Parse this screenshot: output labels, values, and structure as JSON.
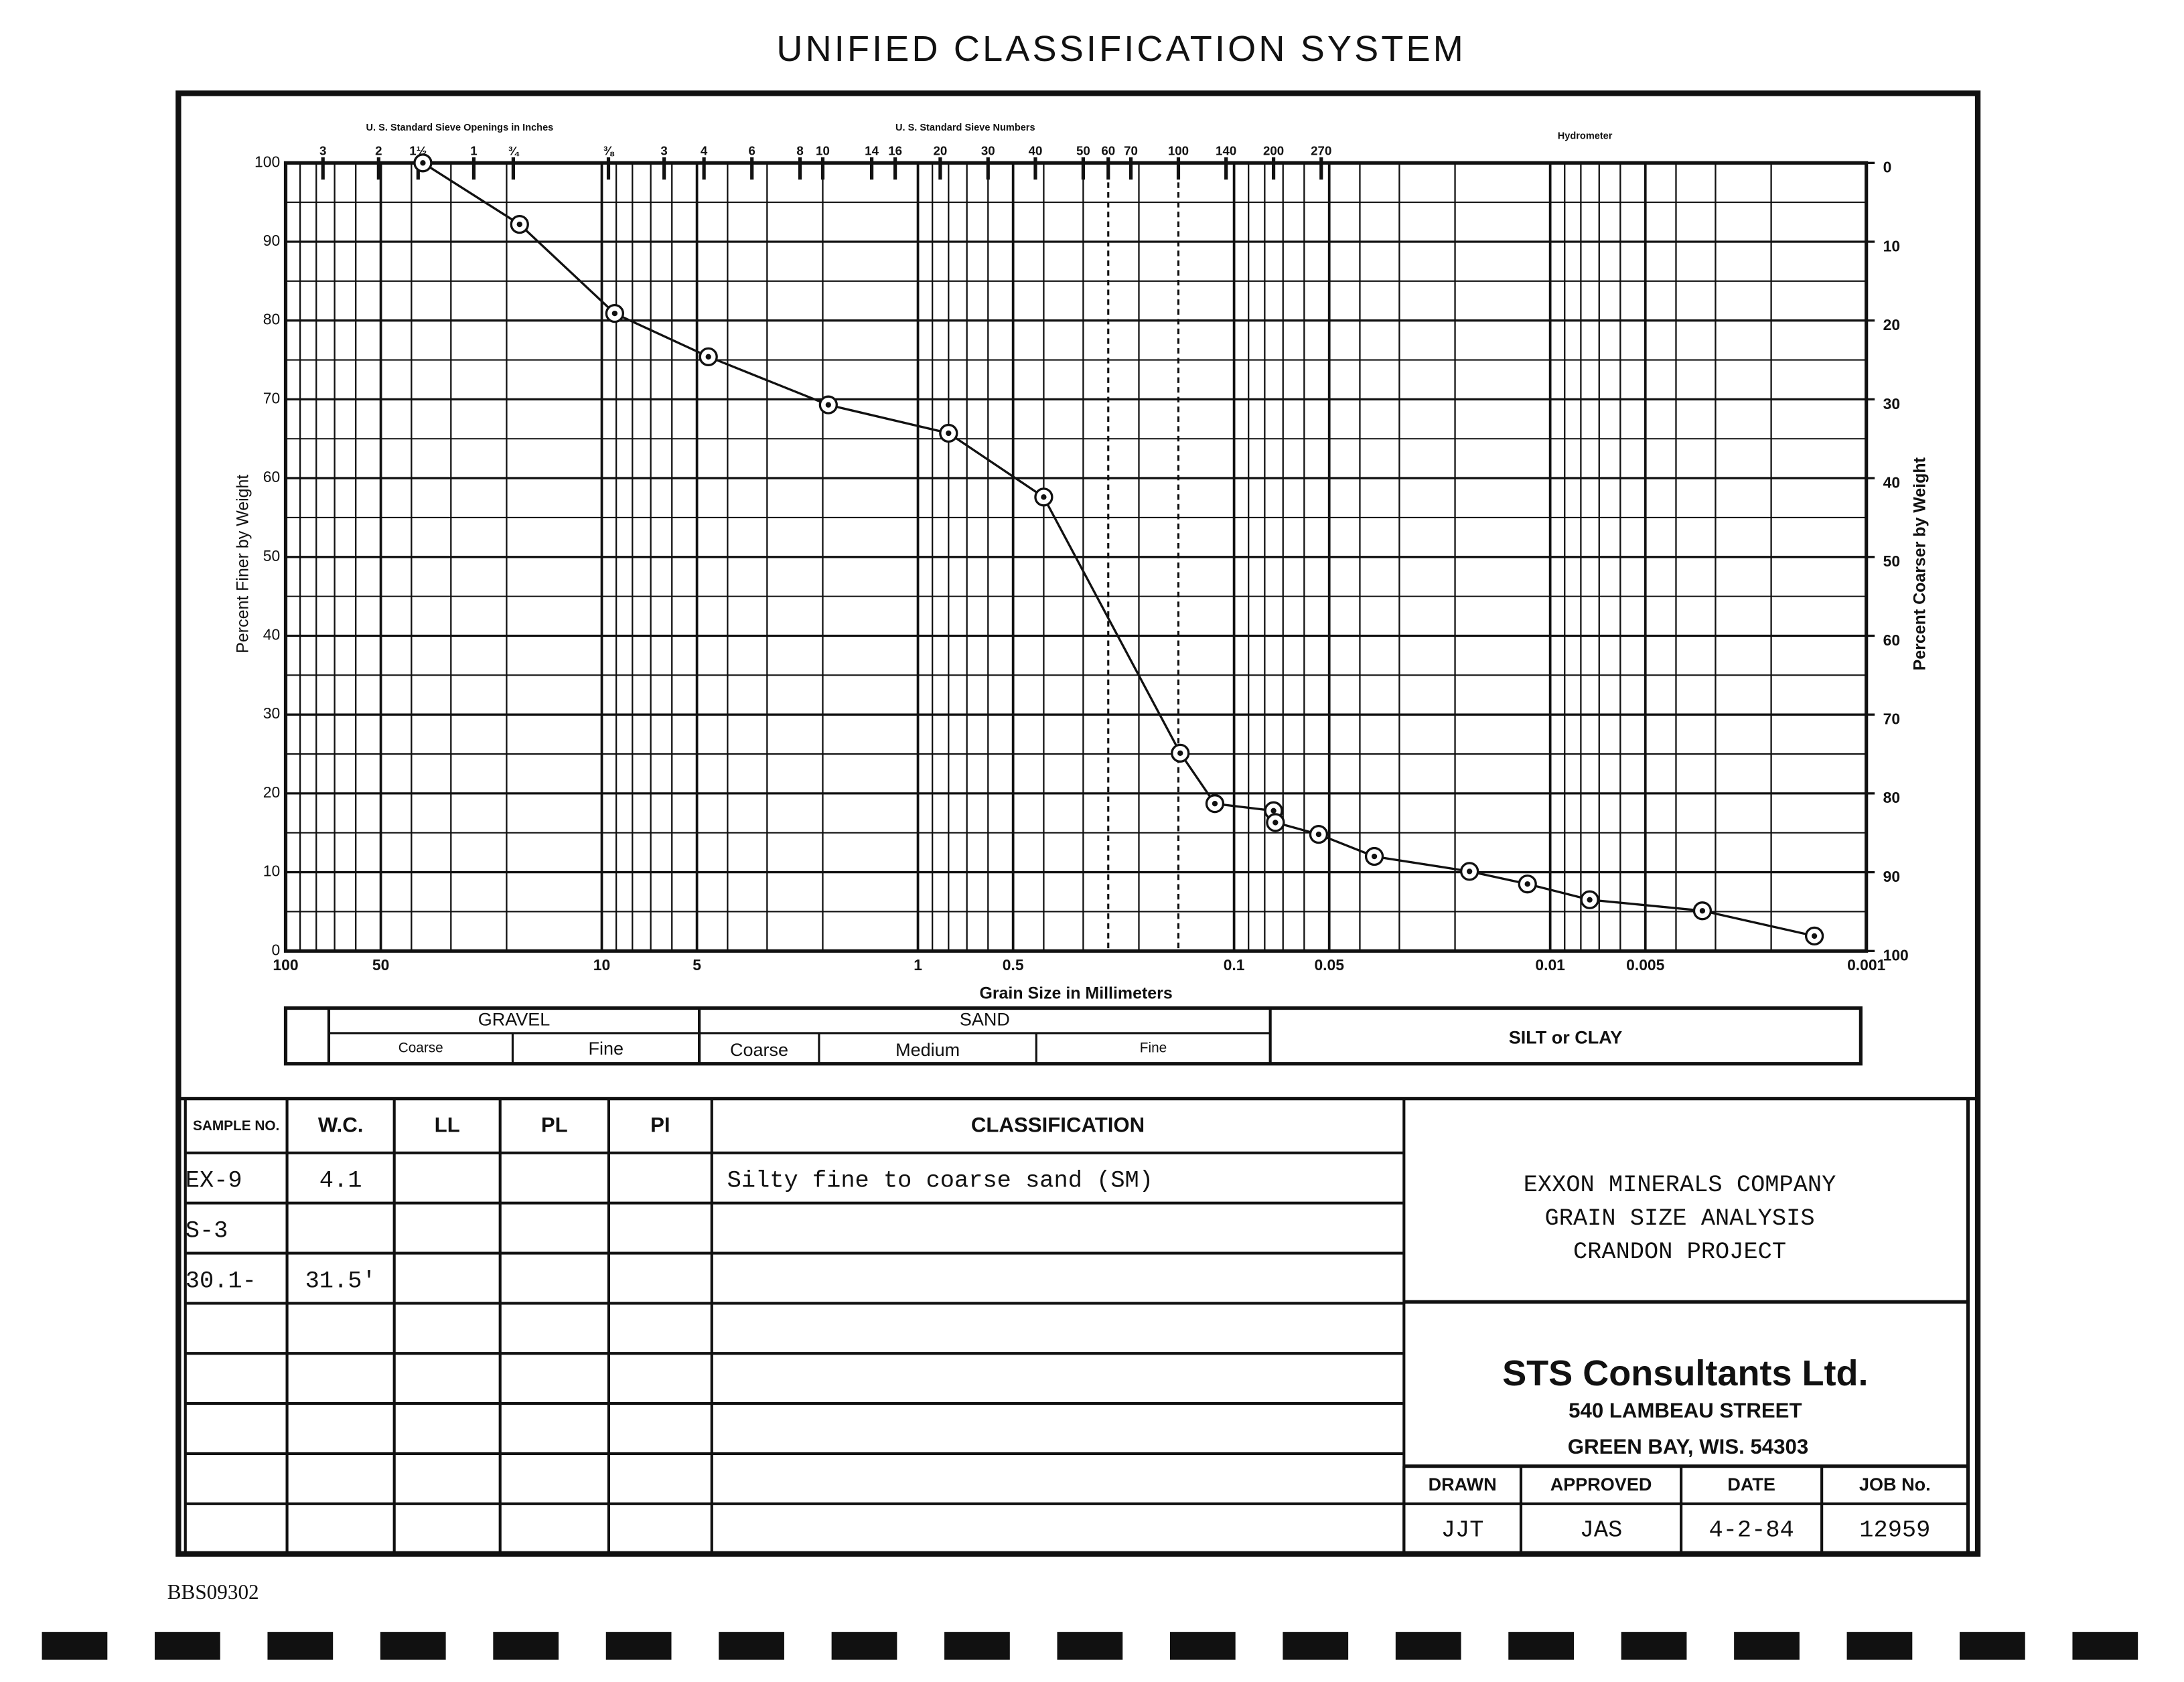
{
  "title": "UNIFIED CLASSIFICATION SYSTEM",
  "chart_data": {
    "type": "line",
    "x_label": "Grain Size in Millimeters",
    "y_label": "Percent Finer by Weight",
    "y2_label": "Percent Coarser by Weight",
    "x2_labels": [
      "U. S. Standard Sieve Openings in Inches",
      "U. S. Standard Sieve Numbers",
      "Hydrometer"
    ],
    "x_scale": "log",
    "xlim": [
      100,
      0.001
    ],
    "xticks": [
      100,
      50,
      10,
      5,
      1,
      0.5,
      0.1,
      0.05,
      0.01,
      0.005,
      0.001
    ],
    "x2ticks": [
      {
        "value": 76.2,
        "label": "3"
      },
      {
        "value": 50.8,
        "label": "2"
      },
      {
        "value": 38.1,
        "label": "1½"
      },
      {
        "value": 25.4,
        "label": "1"
      },
      {
        "value": 19.05,
        "label": "¾"
      },
      {
        "value": 9.525,
        "label": "⅜"
      },
      {
        "value": 6.35,
        "label": "3"
      },
      {
        "value": 4.75,
        "label": "4"
      },
      {
        "value": 3.35,
        "label": "6"
      },
      {
        "value": 2.36,
        "label": "8"
      },
      {
        "value": 2.0,
        "label": "10"
      },
      {
        "value": 1.4,
        "label": "14"
      },
      {
        "value": 1.18,
        "label": "16"
      },
      {
        "value": 0.85,
        "label": "20"
      },
      {
        "value": 0.6,
        "label": "30"
      },
      {
        "value": 0.425,
        "label": "40"
      },
      {
        "value": 0.3,
        "label": "50"
      },
      {
        "value": 0.25,
        "label": "60"
      },
      {
        "value": 0.212,
        "label": "70"
      },
      {
        "value": 0.15,
        "label": "100"
      },
      {
        "value": 0.106,
        "label": "140"
      },
      {
        "value": 0.075,
        "label": "200"
      },
      {
        "value": 0.053,
        "label": "270"
      }
    ],
    "ylim": [
      0,
      100
    ],
    "yticks": [
      0,
      10,
      20,
      30,
      40,
      50,
      60,
      70,
      80,
      90,
      100
    ],
    "y2lim": [
      100,
      0
    ],
    "y2ticks": [
      0,
      10,
      20,
      30,
      40,
      50,
      60,
      70,
      80,
      90,
      100
    ],
    "grid": true,
    "series": [
      {
        "name": "EX-9",
        "color": "#111111",
        "x": [
          36.8,
          18.2,
          9.1,
          4.6,
          1.92,
          0.8,
          0.4,
          0.148,
          0.115,
          0.075,
          0.074,
          0.054,
          0.036,
          0.018,
          0.0118,
          0.0075,
          0.0033,
          0.00146
        ],
        "values": [
          100,
          92.2,
          80.9,
          75.4,
          69.3,
          65.7,
          57.6,
          25.1,
          18.7,
          17.8,
          16.3,
          14.8,
          12.0,
          10.1,
          8.5,
          6.5,
          5.1,
          1.9
        ]
      }
    ]
  },
  "soil_classes": {
    "gravel": {
      "label": "GRAVEL",
      "coarse": "Coarse",
      "fine": "Fine"
    },
    "sand": {
      "label": "SAND",
      "coarse": "Coarse",
      "medium": "Medium",
      "fine": "Fine"
    },
    "silt_clay": "SILT or CLAY"
  },
  "table": {
    "headers": {
      "sample_no": "SAMPLE NO.",
      "wc": "W.C.",
      "ll": "LL",
      "pl": "PL",
      "pi": "PI",
      "classification": "CLASSIFICATION"
    },
    "rows": [
      {
        "sample_no": "EX-9",
        "wc": "4.1",
        "classification": "Silty fine to coarse sand (SM)"
      },
      {
        "sample_no": "S-3"
      },
      {
        "sample_no": "30.1-",
        "wc": "31.5'"
      }
    ]
  },
  "company": {
    "lines": [
      "EXXON MINERALS COMPANY",
      "GRAIN SIZE ANALYSIS",
      "CRANDON PROJECT"
    ]
  },
  "consultant": {
    "name": "STS Consultants Ltd.",
    "street": "540 LAMBEAU STREET",
    "city": "GREEN BAY, WIS. 54303"
  },
  "footer": {
    "headers": [
      "DRAWN",
      "APPROVED",
      "DATE",
      "JOB No."
    ],
    "values": [
      "JJT",
      "JAS",
      "4-2-84",
      "12959"
    ]
  },
  "document_id": "BBS09302"
}
